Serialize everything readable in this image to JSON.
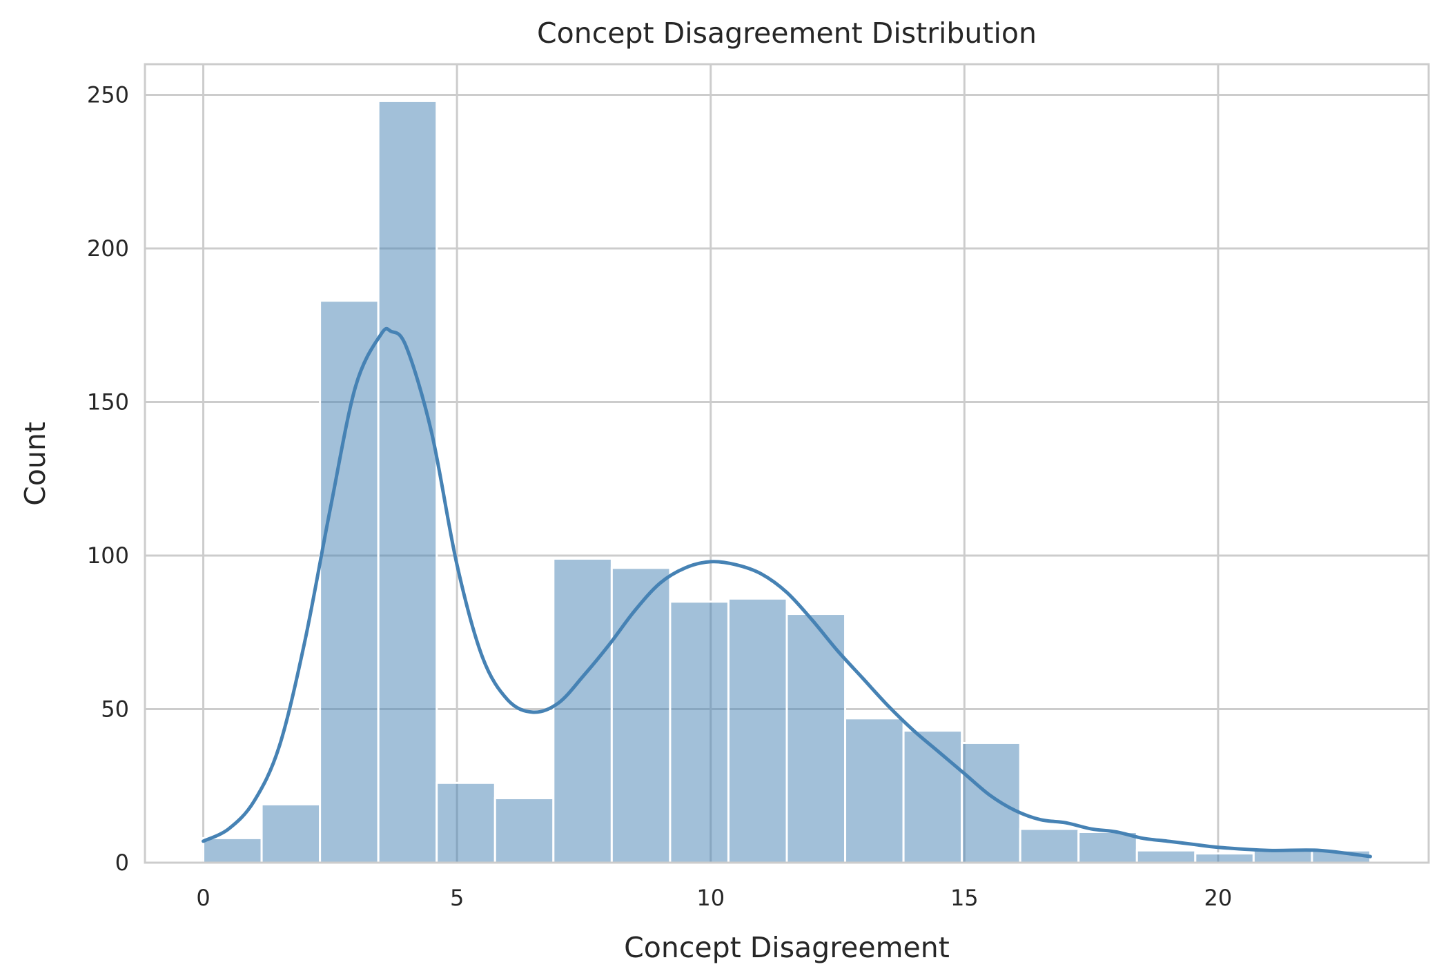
{
  "chart_data": {
    "type": "bar",
    "subtype": "histogram-with-kde",
    "title": "Concept Disagreement Distribution",
    "xlabel": "Concept Disagreement",
    "ylabel": "Count",
    "xlim": [
      -1.15,
      24.15
    ],
    "ylim": [
      0,
      260
    ],
    "xticks": [
      0,
      5,
      10,
      15,
      20
    ],
    "yticks": [
      0,
      50,
      100,
      150,
      200,
      250
    ],
    "grid": true,
    "legend": "none",
    "colors": {
      "bar": "#4682b4",
      "bar_opacity": 0.5,
      "line": "#4682b4",
      "grid": "#cccccc",
      "spine": "#cccccc",
      "bar_edge": "#ffffff"
    },
    "bins": [
      {
        "x0": 0.0,
        "x1": 1.15,
        "count": 8
      },
      {
        "x0": 1.15,
        "x1": 2.3,
        "count": 19
      },
      {
        "x0": 2.3,
        "x1": 3.45,
        "count": 183
      },
      {
        "x0": 3.45,
        "x1": 4.6,
        "count": 248
      },
      {
        "x0": 4.6,
        "x1": 5.75,
        "count": 26
      },
      {
        "x0": 5.75,
        "x1": 6.9,
        "count": 21
      },
      {
        "x0": 6.9,
        "x1": 8.05,
        "count": 99
      },
      {
        "x0": 8.05,
        "x1": 9.2,
        "count": 96
      },
      {
        "x0": 9.2,
        "x1": 10.35,
        "count": 85
      },
      {
        "x0": 10.35,
        "x1": 11.5,
        "count": 86
      },
      {
        "x0": 11.5,
        "x1": 12.65,
        "count": 81
      },
      {
        "x0": 12.65,
        "x1": 13.8,
        "count": 47
      },
      {
        "x0": 13.8,
        "x1": 14.95,
        "count": 43
      },
      {
        "x0": 14.95,
        "x1": 16.1,
        "count": 39
      },
      {
        "x0": 16.1,
        "x1": 17.25,
        "count": 11
      },
      {
        "x0": 17.25,
        "x1": 18.4,
        "count": 10
      },
      {
        "x0": 18.4,
        "x1": 19.55,
        "count": 4
      },
      {
        "x0": 19.55,
        "x1": 20.7,
        "count": 3
      },
      {
        "x0": 20.7,
        "x1": 21.85,
        "count": 4
      },
      {
        "x0": 21.85,
        "x1": 23.0,
        "count": 4
      }
    ],
    "kde": {
      "x": [
        0,
        0.5,
        1,
        1.5,
        2,
        2.5,
        3,
        3.5,
        3.7,
        4,
        4.5,
        5,
        5.5,
        6,
        6.5,
        7,
        7.5,
        8,
        8.5,
        9,
        9.5,
        10,
        10.5,
        11,
        11.5,
        12,
        12.5,
        13,
        13.5,
        14,
        14.5,
        15,
        15.5,
        16,
        16.5,
        17,
        17.5,
        18,
        18.5,
        19,
        19.5,
        20,
        21,
        22,
        23
      ],
      "y": [
        7,
        11,
        20,
        38,
        72,
        115,
        155,
        172,
        173,
        168,
        140,
        97,
        67,
        53,
        49,
        52,
        61,
        71,
        82,
        91,
        96,
        98,
        97,
        94,
        88,
        79,
        69,
        60,
        51,
        43,
        36,
        29,
        22,
        17,
        14,
        13,
        11,
        10,
        8,
        7,
        6,
        5,
        4,
        4,
        2
      ]
    }
  }
}
